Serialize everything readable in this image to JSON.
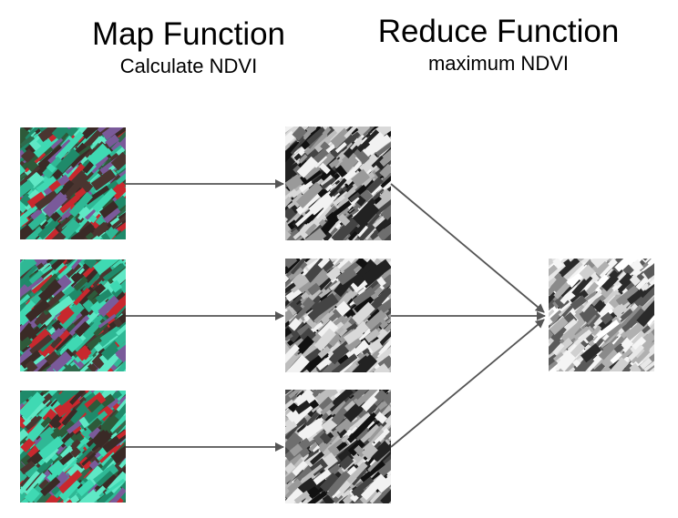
{
  "headings": {
    "map": {
      "title": "Map Function",
      "subtitle": "Calculate NDVI"
    },
    "reduce": {
      "title": "Reduce Function",
      "subtitle": "maximum NDVI"
    }
  },
  "images": {
    "input_count": 3,
    "ndvi_count": 3,
    "result_count": 1,
    "input_kind": "false-color satellite image (cyan, green, dark red fields)",
    "ndvi_kind": "grayscale NDVI image",
    "result_kind": "grayscale maximum NDVI composite"
  },
  "colors": {
    "arrow": "#555555",
    "input_cyan": "#3fd9b3",
    "input_dark": "#3a2a26",
    "input_red": "#c8282e",
    "gray_light": "#e6e6e6",
    "gray_dark": "#222222"
  },
  "icons": {
    "arrow": "arrow-right-icon"
  }
}
